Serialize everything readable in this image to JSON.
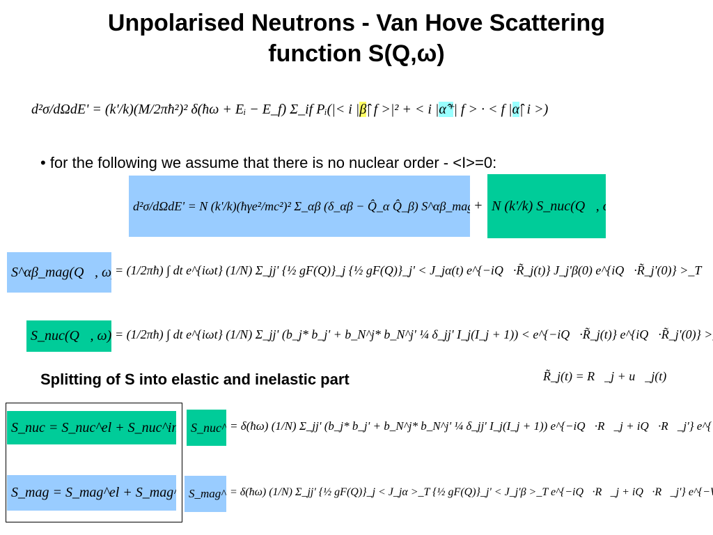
{
  "title": {
    "line1": "Unpolarised Neutrons - Van Hove Scattering",
    "line2": "function S(Q,ω)"
  },
  "eq1": {
    "parts": [
      "d²σ/dΩdE' = (k'/k)(M/2πħ²)² δ(ħω + Eᵢ − E_f) Σ_if Pᵢ(|< i |",
      "β̂",
      "| f >|² + < i |",
      "α̂⁺",
      "| f > · < f |",
      "α̂",
      "| i >)"
    ]
  },
  "bullet": "• for the following we assume that there is no nuclear order - <I>=0:",
  "eq2": {
    "magnetic": "d²σ/dΩdE' = N (k'/k)(ħγe²/mc²)² Σ_αβ (δ_αβ − Q̂_α Q̂_β) S^αβ_mag(Q⃗, ω)",
    "plus": "+",
    "nuclear": "N (k'/k) S_nuc(Q⃗, ω)"
  },
  "eq3": {
    "lhs": "S^αβ_mag(Q⃗, ω)",
    "rhs": "= (1/2πħ) ∫ dt e^{iωt} (1/N) Σ_jj' {½ gF(Q)}_j {½ gF(Q)}_j' < J_jα(t) e^{−iQ⃗·R̃_j(t)} J_j'β(0) e^{iQ⃗·R̃_j'(0)} >_T"
  },
  "eq4": {
    "lhs": "S_nuc(Q⃗, ω)",
    "rhs": "= (1/2πħ) ∫ dt e^{iωt} (1/N) Σ_jj' (b_j* b_j' + b_N^j* b_N^j' ¼ δ_jj' I_j(I_j + 1)) < e^{−iQ⃗·R̃_j(t)} e^{iQ⃗·R̃_j'(0)} >_T"
  },
  "splitting": "Splitting of  S into elastic and inelastic part",
  "r_eq": "R̃_j(t) = R⃗_j + u⃗_j(t)",
  "split_nuc": "S_nuc = S_nuc^el + S_nuc^inel",
  "split_mag": "S_mag = S_mag^el + S_mag^inel",
  "el_nuc": {
    "lhs": "S_nuc^el",
    "rhs": "= δ(ħω) (1/N) Σ_jj' (b_j* b_j' + b_N^j* b_N^j' ¼ δ_jj' I_j(I_j + 1)) e^{−iQ⃗·R⃗_j + iQ⃗·R⃗_j'} e^{−W_j − W_j'}"
  },
  "el_mag": {
    "lhs": "S_mag^el",
    "rhs": "= δ(ħω) (1/N) Σ_jj' {½ gF(Q)}_j < J_jα >_T {½ gF(Q)}_j' < J_j'β >_T e^{−iQ⃗·R⃗_j + iQ⃗·R⃗_j'} e^{−W_j − W_j'}"
  }
}
